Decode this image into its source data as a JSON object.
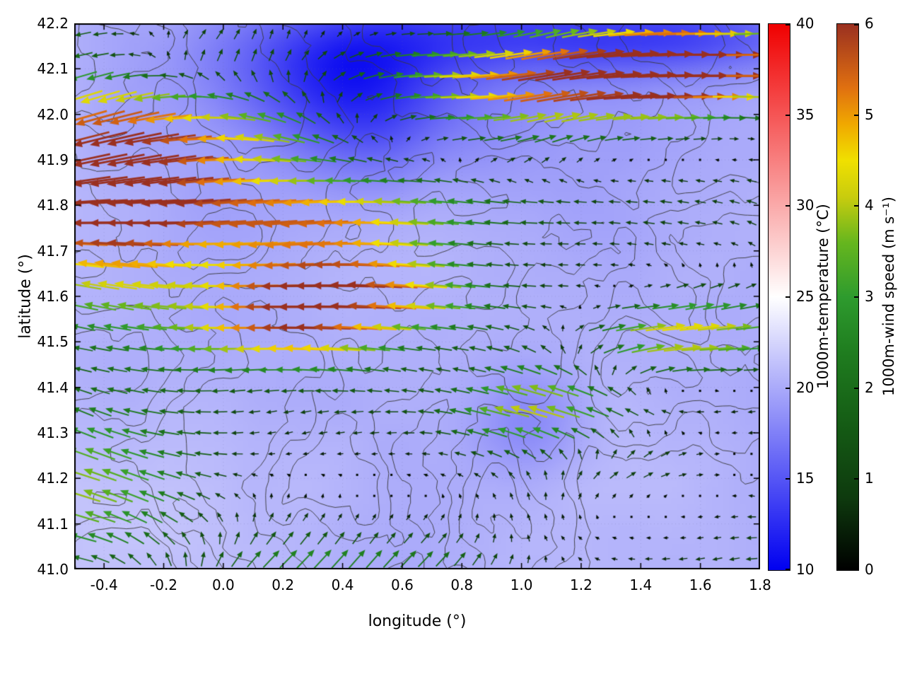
{
  "chart_data": {
    "type": "heatmap",
    "subtype": "temperature field with contour lines and wind-vector overlay",
    "title": "",
    "xlabel": "longitude (°)",
    "ylabel": "latitude (°)",
    "xlim": [
      -0.5,
      1.8
    ],
    "ylim": [
      41.0,
      42.2
    ],
    "x_tick_labels": [
      "-0.4",
      "-0.2",
      "0.0",
      "0.2",
      "0.4",
      "0.6",
      "0.8",
      "1.0",
      "1.2",
      "1.4",
      "1.6",
      "1.8"
    ],
    "y_tick_labels": [
      "41.0",
      "41.1",
      "41.2",
      "41.3",
      "41.4",
      "41.5",
      "41.6",
      "41.7",
      "41.8",
      "41.9",
      "42.0",
      "42.1",
      "42.2"
    ],
    "grid": true,
    "colorbars": [
      {
        "id": "temperature",
        "label": "1000m-temperature (°C)",
        "min": 10,
        "max": 40,
        "ticks": [
          10,
          15,
          20,
          25,
          30,
          35,
          40
        ],
        "stops": [
          {
            "v": 10,
            "c": "#0000f0"
          },
          {
            "v": 25,
            "c": "#ffffff"
          },
          {
            "v": 40,
            "c": "#f00000"
          }
        ]
      },
      {
        "id": "wind",
        "label": "1000m-wind speed (m s⁻¹)",
        "min": 0,
        "max": 6,
        "ticks": [
          0,
          1,
          2,
          3,
          4,
          5,
          6
        ],
        "stops": [
          {
            "v": 0.0,
            "c": "#000000"
          },
          {
            "v": 0.8,
            "c": "#0e3a0e"
          },
          {
            "v": 1.6,
            "c": "#155c15"
          },
          {
            "v": 2.4,
            "c": "#1f7d1f"
          },
          {
            "v": 3.0,
            "c": "#2e9b2e"
          },
          {
            "v": 3.6,
            "c": "#66b61e"
          },
          {
            "v": 4.1,
            "c": "#c8cc0e"
          },
          {
            "v": 4.5,
            "c": "#f0e000"
          },
          {
            "v": 4.9,
            "c": "#f0a800"
          },
          {
            "v": 5.3,
            "c": "#e07010"
          },
          {
            "v": 6.0,
            "c": "#9a3020"
          }
        ]
      }
    ],
    "temperature_field": {
      "base": 20.3,
      "noise_amp": 1.0,
      "noise_scale_x": 3.6,
      "noise_scale_y": 3.1,
      "seed": 3,
      "blobs": [
        {
          "x": 0.38,
          "y": 42.09,
          "sx": 0.26,
          "sy": 0.09,
          "a": -5.5
        },
        {
          "x": 0.75,
          "y": 42.18,
          "sx": 0.45,
          "sy": 0.07,
          "a": -4.5
        },
        {
          "x": 1.55,
          "y": 42.17,
          "sx": 0.4,
          "sy": 0.06,
          "a": -5.0
        },
        {
          "x": 0.5,
          "y": 41.97,
          "sx": 0.18,
          "sy": 0.1,
          "a": -3.0
        },
        {
          "x": 0.6,
          "y": 42.0,
          "sx": 0.5,
          "sy": 0.12,
          "a": -1.8
        },
        {
          "x": 1.02,
          "y": 41.33,
          "sx": 0.13,
          "sy": 0.08,
          "a": -2.5
        },
        {
          "x": -0.3,
          "y": 41.1,
          "sx": 0.3,
          "sy": 0.15,
          "a": 1.0
        }
      ]
    },
    "contours": {
      "color": "#383838",
      "levels": [
        0.38,
        0.46,
        0.54,
        0.62
      ],
      "seed": 11,
      "scale_x": 5.2,
      "scale_y": 4.2,
      "octaves": 4
    },
    "wind_field": {
      "grid_nx": 40,
      "grid_ny": 26,
      "base_u": -1.3,
      "base_v": 0.0,
      "noise_amp": 0.9,
      "noise_scale": 4.3,
      "seed": 7,
      "features": [
        {
          "x": -0.35,
          "y": 41.93,
          "sx": 0.3,
          "sy": 0.14,
          "u": -4.2,
          "v": -1.6
        },
        {
          "x": 0.18,
          "y": 41.99,
          "sx": 0.3,
          "sy": 0.1,
          "u": -3.2,
          "v": 1.4
        },
        {
          "x": 0.95,
          "y": 42.06,
          "sx": 0.65,
          "sy": 0.1,
          "u": 5.8,
          "v": 0.3
        },
        {
          "x": 1.6,
          "y": 42.12,
          "sx": 0.35,
          "sy": 0.08,
          "u": 5.4,
          "v": 0.2
        },
        {
          "x": 0.5,
          "y": 41.63,
          "sx": 0.38,
          "sy": 0.075,
          "u": -5.2,
          "v": 0.2
        },
        {
          "x": 0.3,
          "y": 41.51,
          "sx": 0.3,
          "sy": 0.06,
          "u": -3.6,
          "v": 0.0
        },
        {
          "x": 0.35,
          "y": 41.78,
          "sx": 0.5,
          "sy": 0.055,
          "u": -3.0,
          "v": 0.0
        },
        {
          "x": 1.0,
          "y": 41.36,
          "sx": 0.22,
          "sy": 0.1,
          "u": -4.3,
          "v": 1.1
        },
        {
          "x": 1.5,
          "y": 41.52,
          "sx": 0.33,
          "sy": 0.08,
          "u": 5.6,
          "v": 0.6
        },
        {
          "x": 0.42,
          "y": 40.97,
          "sx": 0.45,
          "sy": 0.14,
          "u": 4.2,
          "v": 3.0
        },
        {
          "x": -0.42,
          "y": 41.18,
          "sx": 0.25,
          "sy": 0.12,
          "u": -2.6,
          "v": 0.8
        },
        {
          "x": -0.3,
          "y": 41.7,
          "sx": 0.25,
          "sy": 0.12,
          "u": -2.2,
          "v": 0.4
        },
        {
          "x": 1.35,
          "y": 41.22,
          "sx": 0.3,
          "sy": 0.07,
          "u": 3.4,
          "v": 0.3
        },
        {
          "x": -0.15,
          "y": 42.14,
          "sx": 0.3,
          "sy": 0.06,
          "u": 1.6,
          "v": 1.2
        }
      ],
      "calm_zones": [
        {
          "x": 0.55,
          "y": 41.18,
          "sx": 0.35,
          "sy": 0.12,
          "a": 0.8
        },
        {
          "x": 1.45,
          "y": 41.1,
          "sx": 0.28,
          "sy": 0.09,
          "a": 0.85
        },
        {
          "x": 1.05,
          "y": 41.68,
          "sx": 0.3,
          "sy": 0.09,
          "a": 0.7
        },
        {
          "x": 0.75,
          "y": 41.45,
          "sx": 0.2,
          "sy": 0.08,
          "a": 0.6
        }
      ]
    }
  }
}
